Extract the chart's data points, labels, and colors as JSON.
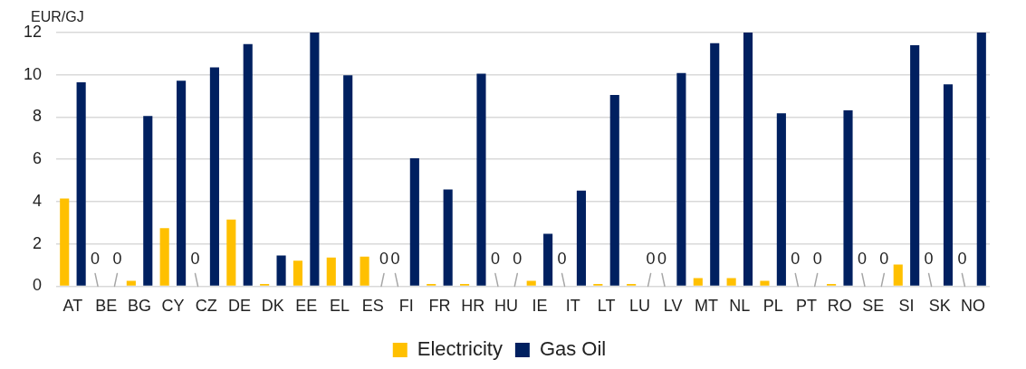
{
  "chart_data": {
    "type": "bar",
    "ylabel": "EUR/GJ",
    "categories": [
      "AT",
      "BE",
      "BG",
      "CY",
      "CZ",
      "DE",
      "DK",
      "EE",
      "EL",
      "ES",
      "FI",
      "FR",
      "HR",
      "HU",
      "IE",
      "IT",
      "LT",
      "LU",
      "LV",
      "MT",
      "NL",
      "PL",
      "PT",
      "RO",
      "SE",
      "SI",
      "SK",
      "NO"
    ],
    "series": [
      {
        "name": "Electricity",
        "color": "#ffc000",
        "values": [
          4.15,
          0,
          0.25,
          2.75,
          0,
          3.15,
          0.1,
          1.2,
          1.35,
          1.4,
          0,
          0.1,
          0.1,
          0,
          0.25,
          0,
          0.1,
          0.1,
          0,
          0.38,
          0.38,
          0.25,
          0,
          0.1,
          0,
          1.02,
          0,
          0
        ],
        "value_labels": [
          null,
          "0",
          null,
          null,
          "0",
          null,
          null,
          null,
          null,
          null,
          "0",
          null,
          null,
          "0",
          null,
          "0",
          null,
          null,
          "0",
          null,
          null,
          null,
          "0",
          null,
          "0",
          null,
          "0",
          "0"
        ]
      },
      {
        "name": "Gas Oil",
        "color": "#002060",
        "values": [
          9.65,
          0,
          8.05,
          9.72,
          10.35,
          11.45,
          1.45,
          12,
          9.98,
          0,
          6.05,
          4.58,
          10.05,
          0,
          2.48,
          4.52,
          9.05,
          0,
          10.08,
          11.5,
          12,
          8.18,
          0,
          8.32,
          0,
          11.4,
          9.55,
          12
        ],
        "value_labels": [
          null,
          "0",
          null,
          null,
          null,
          null,
          null,
          null,
          null,
          "0",
          null,
          null,
          null,
          "0",
          null,
          null,
          null,
          "0",
          null,
          null,
          null,
          null,
          "0",
          null,
          "0",
          null,
          null,
          null
        ]
      }
    ],
    "ylim": [
      0,
      12
    ],
    "yticks": [
      0,
      2,
      4,
      6,
      8,
      10,
      12
    ],
    "grid": "y",
    "legend": "bottom"
  }
}
